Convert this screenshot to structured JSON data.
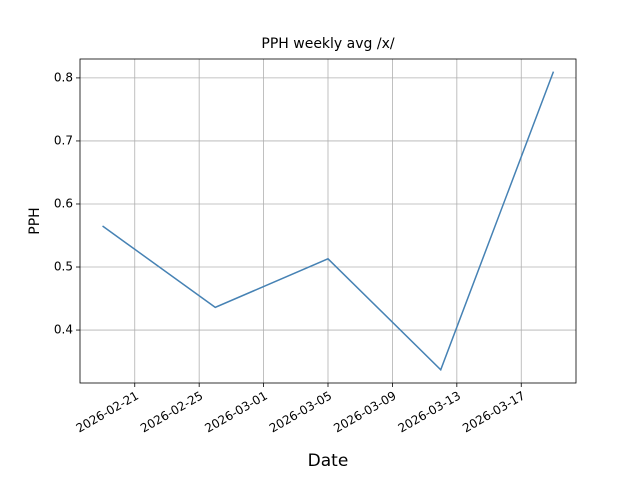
{
  "chart_data": {
    "type": "line",
    "title": "PPH weekly avg /x/",
    "x_label": "Date",
    "y_label": "PPH",
    "x": [
      "2026-02-19",
      "2026-02-26",
      "2026-03-05",
      "2026-03-12",
      "2026-03-19"
    ],
    "values": [
      0.565,
      0.436,
      0.513,
      0.337,
      0.81
    ],
    "color": "#4682b4",
    "xlim": [
      "2026-02-17T14:24",
      "2026-03-20T09:36"
    ],
    "xticks": [
      "2026-02-21",
      "2026-02-25",
      "2026-03-01",
      "2026-03-05",
      "2026-03-09",
      "2026-03-13",
      "2026-03-17"
    ],
    "ylim": [
      0.316,
      0.83
    ],
    "yticks": [
      0.4,
      0.5,
      0.6,
      0.7,
      0.8
    ],
    "grid": true
  }
}
